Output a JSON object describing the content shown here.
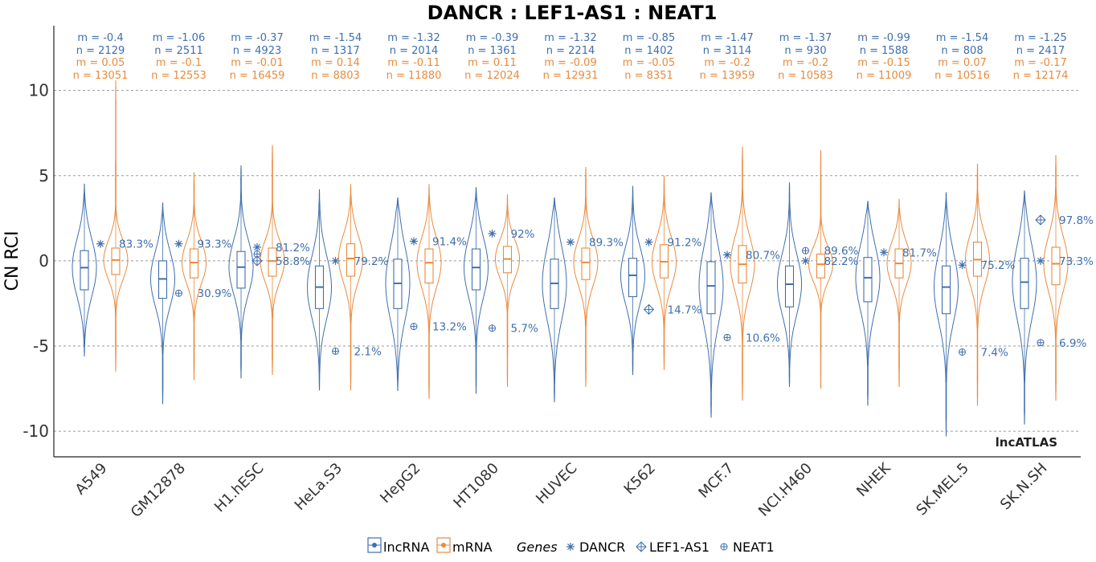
{
  "chart_data": {
    "type": "violin",
    "title": "DANCR : LEF1-AS1 : NEAT1",
    "ylabel": "CN RCI",
    "xlabel": "",
    "ylim": [
      -11.5,
      13.8
    ],
    "yticks": [
      10,
      5,
      0,
      -5,
      -10
    ],
    "ytick_labels": [
      "10",
      "5",
      "0",
      "-5",
      "-10"
    ],
    "grid": "horizontal dashed",
    "watermark": "lncATLAS",
    "colors": {
      "lncRNA": "#3f6fad",
      "mRNA": "#ea8a3c"
    },
    "categories": [
      "A549",
      "GM12878",
      "H1.hESC",
      "HeLa.S3",
      "HepG2",
      "HT1080",
      "HUVEC",
      "K562",
      "MCF.7",
      "NCI.H460",
      "NHEK",
      "SK.MEL.5",
      "SK.N.SH"
    ],
    "series": [
      {
        "name": "lncRNA",
        "stats": [
          {
            "m": "m = -0.4",
            "n": "n = 2129",
            "median": -0.4,
            "q1": -1.7,
            "q3": 0.6,
            "min": -5.6,
            "max": 4.5
          },
          {
            "m": "m = -1.06",
            "n": "n = 2511",
            "median": -1.06,
            "q1": -2.2,
            "q3": 0.0,
            "min": -8.4,
            "max": 3.4
          },
          {
            "m": "m = -0.37",
            "n": "n = 4923",
            "median": -0.37,
            "q1": -1.6,
            "q3": 0.55,
            "min": -6.9,
            "max": 5.6
          },
          {
            "m": "m = -1.54",
            "n": "n = 1317",
            "median": -1.54,
            "q1": -2.8,
            "q3": -0.3,
            "min": -7.6,
            "max": 4.2
          },
          {
            "m": "m = -1.32",
            "n": "n = 2014",
            "median": -1.32,
            "q1": -2.8,
            "q3": 0.1,
            "min": -7.6,
            "max": 3.7
          },
          {
            "m": "m = -0.39",
            "n": "n = 1361",
            "median": -0.39,
            "q1": -1.7,
            "q3": 0.7,
            "min": -7.8,
            "max": 4.3
          },
          {
            "m": "m = -1.32",
            "n": "n = 2214",
            "median": -1.32,
            "q1": -2.8,
            "q3": 0.1,
            "min": -8.3,
            "max": 3.7
          },
          {
            "m": "m = -0.85",
            "n": "n = 1402",
            "median": -0.85,
            "q1": -2.1,
            "q3": 0.15,
            "min": -6.7,
            "max": 4.4
          },
          {
            "m": "m = -1.47",
            "n": "n = 3114",
            "median": -1.47,
            "q1": -3.1,
            "q3": -0.05,
            "min": -9.2,
            "max": 4.0
          },
          {
            "m": "m = -1.37",
            "n": "n = 930",
            "median": -1.37,
            "q1": -2.7,
            "q3": -0.3,
            "min": -7.4,
            "max": 4.6
          },
          {
            "m": "m = -0.99",
            "n": "n = 1588",
            "median": -0.99,
            "q1": -2.4,
            "q3": 0.2,
            "min": -8.5,
            "max": 3.5
          },
          {
            "m": "m = -1.54",
            "n": "n = 808",
            "median": -1.54,
            "q1": -3.1,
            "q3": -0.3,
            "min": -10.3,
            "max": 4.0
          },
          {
            "m": "m = -1.25",
            "n": "n = 2417",
            "median": -1.25,
            "q1": -2.8,
            "q3": 0.15,
            "min": -9.6,
            "max": 4.1
          }
        ]
      },
      {
        "name": "mRNA",
        "stats": [
          {
            "m": "m = 0.05",
            "n": "n = 13051",
            "median": 0.05,
            "q1": -0.8,
            "q3": 0.75,
            "min": -6.5,
            "max": 10.6
          },
          {
            "m": "m = -0.1",
            "n": "n = 12553",
            "median": -0.1,
            "q1": -1.0,
            "q3": 0.7,
            "min": -7.0,
            "max": 5.2
          },
          {
            "m": "m = -0.01",
            "n": "n = 16459",
            "median": -0.01,
            "q1": -0.9,
            "q3": 0.75,
            "min": -6.7,
            "max": 6.8
          },
          {
            "m": "m = 0.14",
            "n": "n = 8803",
            "median": 0.14,
            "q1": -0.9,
            "q3": 1.0,
            "min": -7.6,
            "max": 4.5
          },
          {
            "m": "m = -0.11",
            "n": "n = 11880",
            "median": -0.11,
            "q1": -1.3,
            "q3": 0.7,
            "min": -8.1,
            "max": 4.5
          },
          {
            "m": "m = 0.11",
            "n": "n = 12024",
            "median": 0.11,
            "q1": -0.7,
            "q3": 0.85,
            "min": -7.4,
            "max": 3.9
          },
          {
            "m": "m = -0.09",
            "n": "n = 12931",
            "median": -0.09,
            "q1": -1.1,
            "q3": 0.75,
            "min": -7.4,
            "max": 5.5
          },
          {
            "m": "m = -0.05",
            "n": "n = 8351",
            "median": -0.05,
            "q1": -1.0,
            "q3": 0.95,
            "min": -6.4,
            "max": 5.0
          },
          {
            "m": "m = -0.2",
            "n": "n = 13959",
            "median": -0.2,
            "q1": -1.3,
            "q3": 0.9,
            "min": -8.2,
            "max": 6.7
          },
          {
            "m": "m = -0.2",
            "n": "n = 10583",
            "median": -0.2,
            "q1": -1.0,
            "q3": 0.4,
            "min": -7.5,
            "max": 6.5
          },
          {
            "m": "m = -0.15",
            "n": "n = 11009",
            "median": -0.15,
            "q1": -1.0,
            "q3": 0.7,
            "min": -7.4,
            "max": 3.6
          },
          {
            "m": "m = 0.07",
            "n": "n = 10516",
            "median": 0.07,
            "q1": -0.9,
            "q3": 1.1,
            "min": -8.5,
            "max": 5.7
          },
          {
            "m": "m = -0.17",
            "n": "n = 12174",
            "median": -0.17,
            "q1": -1.4,
            "q3": 0.8,
            "min": -8.2,
            "max": 6.2
          }
        ]
      }
    ],
    "gene_markers": [
      {
        "category": "A549",
        "points": [
          {
            "gene": "DANCR",
            "value": 1.0,
            "label": "83.3%"
          }
        ]
      },
      {
        "category": "GM12878",
        "points": [
          {
            "gene": "DANCR",
            "value": 1.0,
            "label": "93.3%"
          },
          {
            "gene": "NEAT1",
            "value": -1.9,
            "label": "30.9%"
          }
        ]
      },
      {
        "category": "H1.hESC",
        "points": [
          {
            "gene": "DANCR",
            "value": 0.8,
            "label": "81.2%"
          },
          {
            "gene": "NEAT1",
            "value": 0.4,
            "label": ""
          },
          {
            "gene": "LEF1-AS1",
            "value": 0.0,
            "label": "58.8%"
          }
        ]
      },
      {
        "category": "HeLa.S3",
        "points": [
          {
            "gene": "DANCR",
            "value": 0.0,
            "label": "79.2%"
          },
          {
            "gene": "NEAT1",
            "value": -5.3,
            "label": "2.1%"
          }
        ]
      },
      {
        "category": "HepG2",
        "points": [
          {
            "gene": "DANCR",
            "value": 1.15,
            "label": "91.4%"
          },
          {
            "gene": "NEAT1",
            "value": -3.85,
            "label": "13.2%"
          }
        ]
      },
      {
        "category": "HT1080",
        "points": [
          {
            "gene": "DANCR",
            "value": 1.6,
            "label": "92%"
          },
          {
            "gene": "NEAT1",
            "value": -3.95,
            "label": "5.7%"
          }
        ]
      },
      {
        "category": "HUVEC",
        "points": [
          {
            "gene": "DANCR",
            "value": 1.1,
            "label": "89.3%"
          }
        ]
      },
      {
        "category": "K562",
        "points": [
          {
            "gene": "DANCR",
            "value": 1.1,
            "label": "91.2%"
          },
          {
            "gene": "LEF1-AS1",
            "value": -2.85,
            "label": "14.7%"
          }
        ]
      },
      {
        "category": "MCF.7",
        "points": [
          {
            "gene": "DANCR",
            "value": 0.35,
            "label": "80.7%"
          },
          {
            "gene": "NEAT1",
            "value": -4.5,
            "label": "10.6%"
          }
        ]
      },
      {
        "category": "NCI.H460",
        "points": [
          {
            "gene": "NEAT1",
            "value": 0.6,
            "label": "89.6%"
          },
          {
            "gene": "DANCR",
            "value": 0.0,
            "label": "82.2%"
          }
        ]
      },
      {
        "category": "NHEK",
        "points": [
          {
            "gene": "DANCR",
            "value": 0.5,
            "label": "81.7%"
          }
        ]
      },
      {
        "category": "SK.MEL.5",
        "points": [
          {
            "gene": "DANCR",
            "value": -0.25,
            "label": "75.2%"
          },
          {
            "gene": "NEAT1",
            "value": -5.35,
            "label": "7.4%"
          }
        ]
      },
      {
        "category": "SK.N.SH",
        "points": [
          {
            "gene": "LEF1-AS1",
            "value": 2.4,
            "label": "97.8%"
          },
          {
            "gene": "DANCR",
            "value": 0.0,
            "label": "73.3%"
          },
          {
            "gene": "NEAT1",
            "value": -4.8,
            "label": "6.9%"
          }
        ]
      }
    ],
    "legend": {
      "placement": "bottom",
      "items": [
        {
          "key": "lncRNA",
          "label": "lncRNA"
        },
        {
          "key": "mRNA",
          "label": "mRNA"
        }
      ],
      "genes_title": "Genes",
      "genes": [
        {
          "key": "DANCR",
          "label": "DANCR",
          "symbol": "asterisk"
        },
        {
          "key": "LEF1-AS1",
          "label": "LEF1-AS1",
          "symbol": "circle-plus-diamond"
        },
        {
          "key": "NEAT1",
          "label": "NEAT1",
          "symbol": "circle-plus"
        }
      ]
    }
  }
}
